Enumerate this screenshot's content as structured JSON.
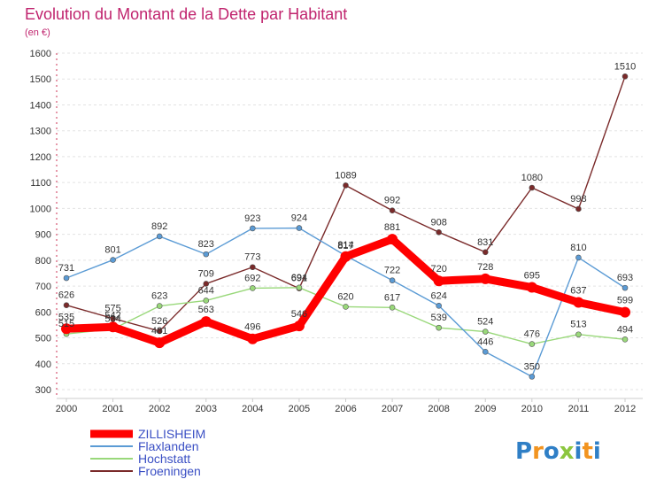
{
  "chart_data": {
    "type": "line",
    "title": "Evolution du Montant de la Dette par Habitant",
    "subtitle": "(en €)",
    "xlabel": "",
    "ylabel": "",
    "ylim": [
      300,
      1600
    ],
    "yticks": [
      300,
      400,
      500,
      600,
      700,
      800,
      900,
      1000,
      1100,
      1200,
      1300,
      1400,
      1500,
      1600
    ],
    "categories": [
      "2000",
      "2001",
      "2002",
      "2003",
      "2004",
      "2005",
      "2006",
      "2007",
      "2008",
      "2009",
      "2010",
      "2011",
      "2012"
    ],
    "grid": "horizontal",
    "legend_position": "bottom-left",
    "series": [
      {
        "name": "ZILLISHEIM",
        "color": "#ff0000",
        "values": [
          535,
          542,
          481,
          563,
          496,
          546,
          814,
          881,
          720,
          728,
          695,
          637,
          599
        ]
      },
      {
        "name": "Flaxlanden",
        "color": "#5b9bd5",
        "values": [
          731,
          801,
          892,
          823,
          923,
          924,
          817,
          722,
          624,
          446,
          350,
          810,
          693
        ]
      },
      {
        "name": "Hochstatt",
        "color": "#99d87a",
        "values": [
          515,
          534,
          623,
          644,
          692,
          694,
          620,
          617,
          539,
          524,
          476,
          513,
          494
        ]
      },
      {
        "name": "Froeningen",
        "color": "#7a2a2a",
        "values": [
          626,
          575,
          526,
          709,
          773,
          691,
          1089,
          992,
          908,
          831,
          1080,
          998,
          1510
        ]
      }
    ]
  },
  "logo": {
    "text": "Proxiti",
    "letters": [
      "P",
      "r",
      "o",
      "x",
      "i",
      "t",
      "i"
    ],
    "colors": [
      "#2f7fc6",
      "#f29420",
      "#2f7fc6",
      "#8cc63f",
      "#2f7fc6",
      "#f29420",
      "#2f7fc6"
    ]
  }
}
